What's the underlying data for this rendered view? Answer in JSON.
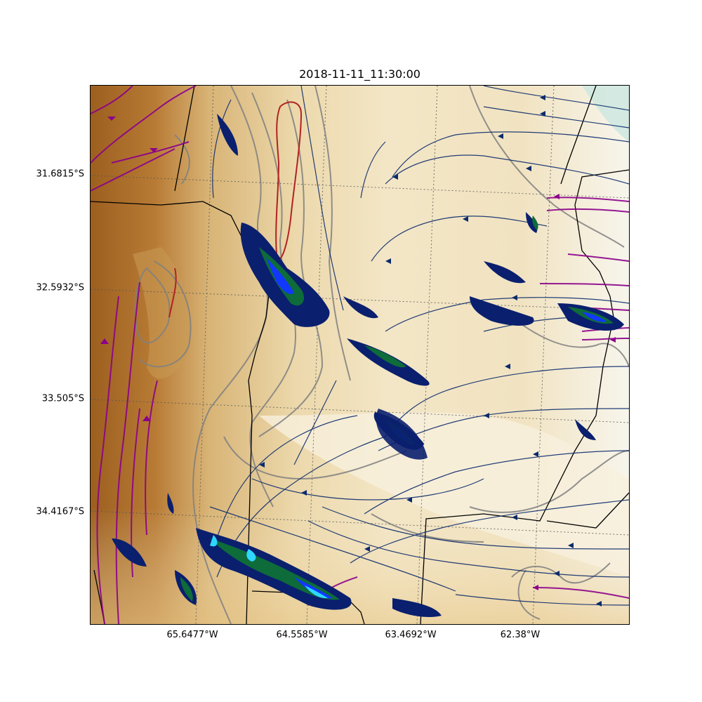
{
  "title": "2018-11-11_11:30:00",
  "map": {
    "lat_labels": [
      "31.6815°S",
      "32.5932°S",
      "33.505°S",
      "34.4167°S"
    ],
    "lon_labels": [
      "65.6477°W",
      "64.5585°W",
      "63.4692°W",
      "62.38°W"
    ],
    "gridlines": "dotted",
    "terrain_colormap": "brown-to-white elevation shading",
    "colors": {
      "terrain_high": "#9c5f1f",
      "terrain_mid": "#d8b476",
      "terrain_low": "#f3e6c6",
      "terrain_lowest": "#f7f5ec",
      "coast_tint": "#cfe8e0",
      "contours": "#808080",
      "boundaries": "#000000",
      "streamline_weak": "#0b2a6b",
      "streamline_strong": "#8b008b",
      "radar_low": "#0a1f6e",
      "radar_mid": "#0e6b3a",
      "radar_high": "#1238ff",
      "radar_max": "#2fd6ff",
      "red_contour": "#b22222"
    }
  }
}
